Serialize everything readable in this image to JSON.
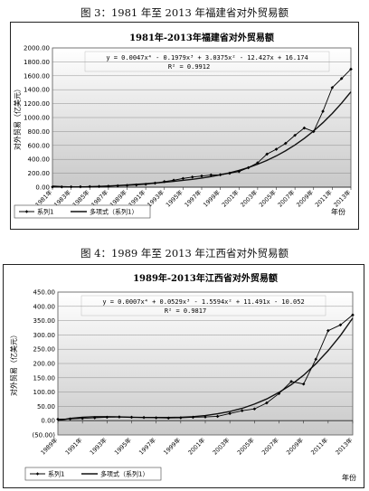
{
  "figure1": {
    "caption": "图 3：1981 年至 2013 年福建省对外贸易额"
  },
  "figure2": {
    "caption": "图 4：1989 年至 2013 年江西省对外贸易额"
  },
  "chart_data": [
    {
      "type": "line",
      "title": "1981年-2013年福建省对外贸易额",
      "ylabel": "对外贸易（亿美元）",
      "xlabel": "年份",
      "equation": "y = 0.0047x⁴ - 0.1979x³ + 3.0375x² - 12.427x + 16.174",
      "r2": "R² = 0.9912",
      "ylim": [
        0,
        2000
      ],
      "yticks": [
        "0.00",
        "200.00",
        "400.00",
        "600.00",
        "800.00",
        "1000.00",
        "1200.00",
        "1400.00",
        "1600.00",
        "1800.00",
        "2000.00"
      ],
      "xticks": [
        "1981年",
        "1983年",
        "1985年",
        "1987年",
        "1989年",
        "1991年",
        "1993年",
        "1995年",
        "1997年",
        "1999年",
        "2001年",
        "2003年",
        "2005年",
        "2007年",
        "2009年",
        "2011年",
        "2013年"
      ],
      "x": [
        1981,
        1982,
        1983,
        1984,
        1985,
        1986,
        1987,
        1988,
        1989,
        1990,
        1991,
        1992,
        1993,
        1994,
        1995,
        1996,
        1997,
        1998,
        1999,
        2000,
        2001,
        2002,
        2003,
        2004,
        2005,
        2006,
        2007,
        2008,
        2009,
        2010,
        2011,
        2012,
        2013
      ],
      "series": [
        {
          "name": "系列1",
          "values": [
            3,
            4,
            5,
            6,
            8,
            10,
            14,
            20,
            26,
            32,
            42,
            58,
            80,
            100,
            125,
            145,
            160,
            175,
            178,
            200,
            225,
            280,
            350,
            475,
            545,
            630,
            745,
            850,
            800,
            1090,
            1430,
            1560,
            1695
          ]
        },
        {
          "name": "多项式（系列1）",
          "values": [
            16,
            7,
            3,
            3,
            6,
            11,
            17,
            24,
            32,
            41,
            50,
            60,
            71,
            84,
            98,
            113,
            131,
            152,
            177,
            206,
            241,
            282,
            330,
            385,
            449,
            523,
            606,
            700,
            807,
            926,
            1059,
            1207,
            1370
          ]
        }
      ],
      "legend": "bottom-left",
      "grid": true
    },
    {
      "type": "line",
      "title": "1989年-2013年江西省对外贸易额",
      "ylabel": "对外贸易（亿美元）",
      "xlabel": "年份",
      "equation": "y = 0.0007x⁴ + 0.0529x³ - 1.5594x² + 11.491x - 10.052",
      "r2": "R² = 0.9817",
      "ylim": [
        -50,
        450
      ],
      "yticks": [
        "(50.00)",
        "0.00",
        "50.00",
        "100.00",
        "150.00",
        "200.00",
        "250.00",
        "300.00",
        "350.00",
        "400.00",
        "450.00"
      ],
      "xticks": [
        "1989年",
        "1991年",
        "1993年",
        "1995年",
        "1997年",
        "1999年",
        "2001年",
        "2003年",
        "2005年",
        "2007年",
        "2009年",
        "2011年",
        "2013年"
      ],
      "x": [
        1989,
        1990,
        1991,
        1992,
        1993,
        1994,
        1995,
        1996,
        1997,
        1998,
        1999,
        2000,
        2001,
        2002,
        2003,
        2004,
        2005,
        2006,
        2007,
        2008,
        2009,
        2010,
        2011,
        2012,
        2013
      ],
      "series": [
        {
          "name": "系列1",
          "values": [
            5,
            6,
            8,
            10,
            12,
            13,
            12,
            11,
            10,
            9,
            10,
            12,
            13,
            15,
            25,
            35,
            41,
            62,
            95,
            137,
            128,
            215,
            315,
            335,
            370
          ]
        },
        {
          "name": "多项式（系列1）",
          "values": [
            0,
            8,
            12,
            14,
            14,
            13,
            12,
            11,
            11,
            11,
            12,
            14,
            18,
            24,
            32,
            43,
            58,
            76,
            99,
            126,
            159,
            199,
            245,
            298,
            359
          ]
        }
      ],
      "legend": "bottom-left",
      "grid": true
    }
  ]
}
